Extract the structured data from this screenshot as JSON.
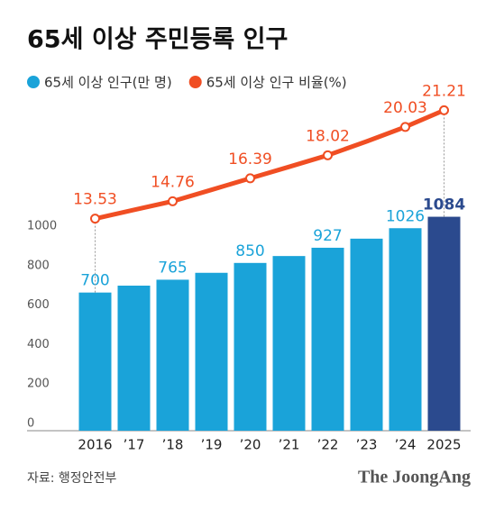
{
  "chart_data": {
    "type": "bar_line",
    "title": "65세 이상 주민등록 인구",
    "categories": [
      "2016",
      "’17",
      "’18",
      "’19",
      "’20",
      "’21",
      "’22",
      "’23",
      "’24",
      "2025"
    ],
    "series": [
      {
        "name": "65세 이상 인구(만 명)",
        "color": "#1aa3d9",
        "type": "bar",
        "colors": [
          "#1aa3d9",
          "#1aa3d9",
          "#1aa3d9",
          "#1aa3d9",
          "#1aa3d9",
          "#1aa3d9",
          "#1aa3d9",
          "#1aa3d9",
          "#1aa3d9",
          "#2b4a8e"
        ],
        "values": [
          700,
          735,
          765,
          800,
          850,
          885,
          927,
          973,
          1026,
          1084
        ],
        "value_labels": [
          "700",
          null,
          "765",
          null,
          "850",
          null,
          "927",
          null,
          "1026",
          "1084"
        ]
      },
      {
        "name": "65세 이상 인구 비율(%)",
        "color": "#f04e23",
        "type": "line",
        "axis": "y2",
        "values": [
          13.53,
          14.15,
          14.76,
          15.57,
          16.39,
          17.2,
          18.02,
          19.0,
          20.03,
          21.21
        ],
        "value_labels": [
          "13.53",
          null,
          "14.76",
          null,
          "16.39",
          null,
          "18.02",
          null,
          "20.03",
          "21.21"
        ]
      }
    ],
    "ylim": [
      0,
      1680
    ],
    "yticks": [
      0,
      200,
      400,
      600,
      800,
      1000
    ],
    "y2lim": [
      -1.5,
      22
    ],
    "source": "자료: 행정안전부",
    "brand": "The JoongAng"
  }
}
